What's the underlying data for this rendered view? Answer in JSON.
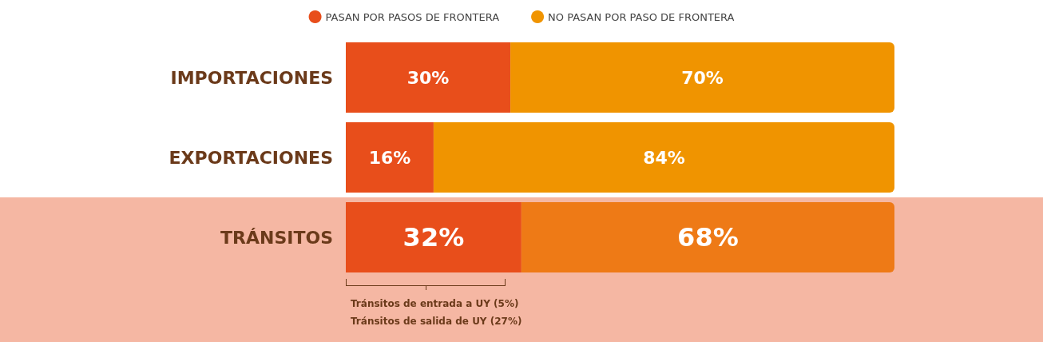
{
  "chart_data": {
    "type": "bar",
    "orientation": "horizontal",
    "stacked": true,
    "legend": "top",
    "data_labels": false,
    "categories": [
      "IMPORTACIONES",
      "EXPORTACIONES",
      "TRÁNSITOS"
    ],
    "series": [
      {
        "name": "PASAN POR PASOS DE FRONTERA",
        "color": "#e84e1b",
        "colors": [
          "#e84e1b",
          "#e84e1b",
          "#e84e1b"
        ],
        "values": [
          30,
          16,
          32
        ],
        "value_labels": [
          "30%",
          "16%",
          "32%"
        ]
      },
      {
        "name": "NO PASAN POR PASO DE FRONTERA",
        "color": "#f09400",
        "colors": [
          "#f09400",
          "#f09400",
          "#ee7a16"
        ],
        "values": [
          70,
          84,
          68
        ],
        "value_labels": [
          "70%",
          "84%",
          "68%"
        ]
      }
    ],
    "bands": [
      {
        "axis": "y",
        "from": "TRÁNSITOS",
        "to": "TRÁNSITOS",
        "color": "#f5b7a3"
      }
    ],
    "annotations": [
      "Tránsitos de entrada a UY (5%)",
      "Tránsitos de salida de UY (27%)"
    ]
  }
}
